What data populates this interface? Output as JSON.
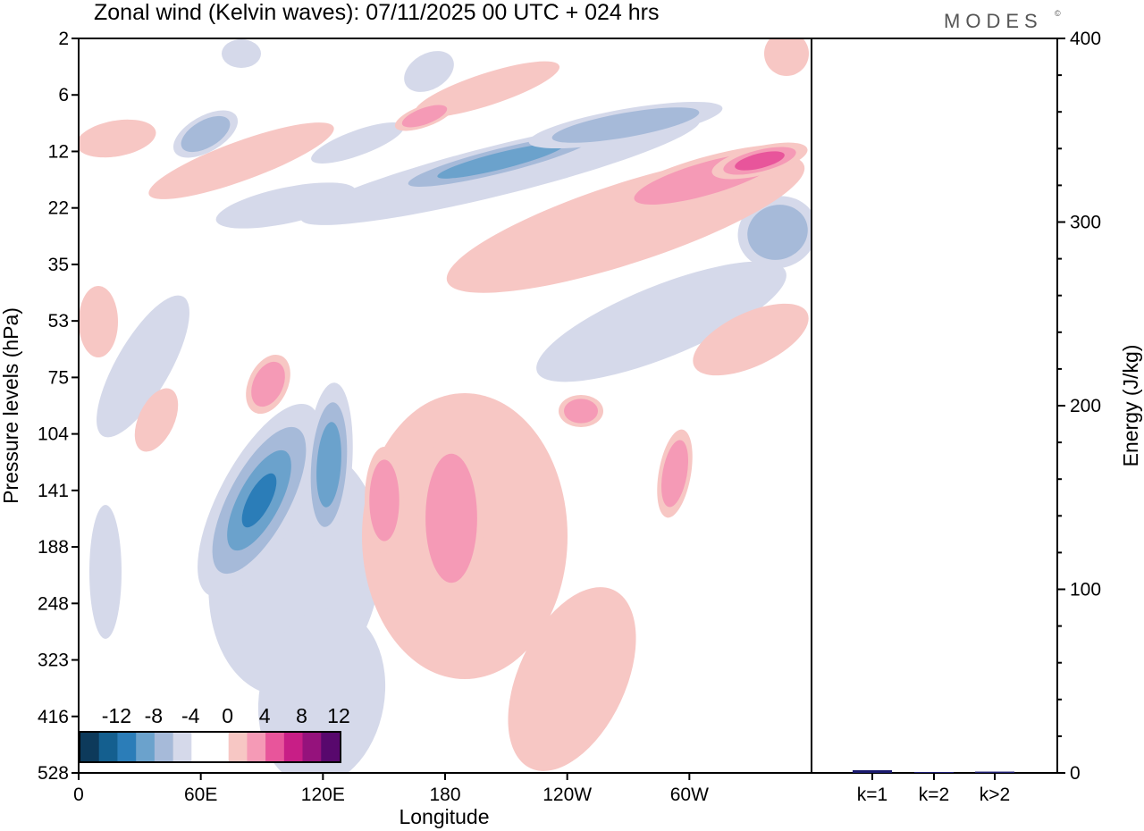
{
  "title": "Zonal wind (Kelvin waves):  07/11/2025  00 UTC  + 024 hrs",
  "brand": "MODES",
  "brand_mark": "©",
  "chart_data": [
    {
      "type": "heatmap",
      "title": "Zonal wind (Kelvin waves):  07/11/2025  00 UTC  + 024 hrs",
      "xlabel": "Longitude",
      "ylabel": "Pressure levels (hPa)",
      "x_ticks": [
        "0",
        "60E",
        "120E",
        "180",
        "120W",
        "60W"
      ],
      "x_range_deg": [
        0,
        360
      ],
      "y_ticks": [
        "2",
        "6",
        "12",
        "22",
        "35",
        "53",
        "75",
        "104",
        "141",
        "188",
        "248",
        "323",
        "416",
        "528"
      ],
      "colorbar": {
        "labels": [
          "-12",
          "-8",
          "-4",
          "0",
          "4",
          "8",
          "12"
        ],
        "colors": [
          "#0d3a5b",
          "#145f8f",
          "#2b7db8",
          "#6ba2cc",
          "#a6bad9",
          "#d5d9ea",
          "#ffffff",
          "#ffffff",
          "#f7c7c4",
          "#f59ab6",
          "#e8559b",
          "#c81e86",
          "#95127c",
          "#58086d"
        ]
      },
      "features": [
        {
          "sign": "negative",
          "peak": -13,
          "lon_range": [
            70,
            110
          ],
          "pressure_range_hPa": [
            75,
            416
          ]
        },
        {
          "sign": "negative",
          "peak": -10,
          "lon_range": [
            108,
            130
          ],
          "pressure_range_hPa": [
            75,
            416
          ]
        },
        {
          "sign": "positive",
          "peak": 6,
          "lon_range": [
            140,
            240
          ],
          "pressure_range_hPa": [
            75,
            528
          ]
        },
        {
          "sign": "negative",
          "peak": -9,
          "lon_range": [
            150,
            250
          ],
          "pressure_range_hPa": [
            6,
            22
          ]
        },
        {
          "sign": "positive",
          "peak": 9,
          "lon_range": [
            200,
            360
          ],
          "pressure_range_hPa": [
            10,
            35
          ]
        }
      ]
    },
    {
      "type": "bar",
      "ylabel": "Energy (J/kg)",
      "categories": [
        "k=1",
        "k=2",
        "k>2"
      ],
      "values": [
        1.5,
        0.5,
        0.7
      ],
      "ylim": [
        0,
        400
      ],
      "y_ticks": [
        "0",
        "100",
        "200",
        "300",
        "400"
      ],
      "bar_color": "#1a1a6e"
    }
  ]
}
